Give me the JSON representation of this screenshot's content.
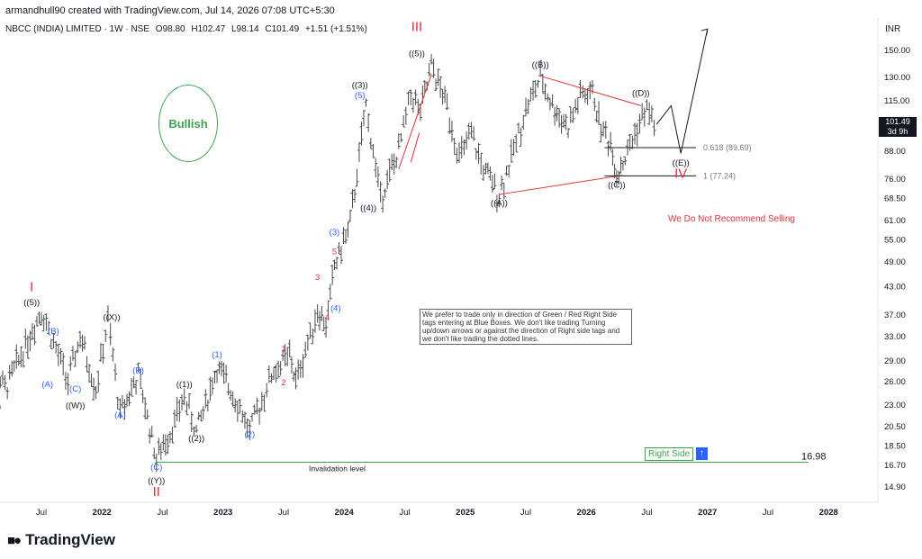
{
  "header": {
    "created_by": "armandhull90 created with TradingView.com, Jul 14, 2026 07:08 UTC+5:30",
    "symbol": "NBCC (INDIA) LIMITED · 1W · NSE",
    "ohlc_open": "O98.80",
    "ohlc_high": "H102.47",
    "ohlc_low": "L98.14",
    "ohlc_close": "C101.49",
    "change": "+1.51 (+1.51%)",
    "currency": "INR"
  },
  "price_box": {
    "price": "101.49",
    "countdown": "3d 9h"
  },
  "bullish_label": "Bullish",
  "note_text": "We prefer to trade only in direction of Green / Red Right Side tags entering at Blue Boxes. We don't like trading Turning up/down arrows or against the direction of Right side tags and we don't like trading the dotted lines.",
  "right_side_label": "Right Side",
  "arrow_icon": "up-arrow-icon",
  "recommend_text": "We Do Not Recommend Selling",
  "invalidation_label": "Invalidation level",
  "brand": "TradingView",
  "colors": {
    "green": "#3fa34d",
    "red": "#e0303a",
    "blue": "#2962ff",
    "bar": "#4a4a4a"
  },
  "chart_data": {
    "type": "ohlc",
    "scale": "log",
    "ylim": [
      13.5,
      175
    ],
    "y_ticks": [
      "150.00",
      "130.00",
      "115.00",
      "101.49",
      "88.00",
      "76.00",
      "68.50",
      "61.00",
      "55.00",
      "49.00",
      "43.00",
      "37.00",
      "33.00",
      "29.00",
      "26.00",
      "23.00",
      "20.50",
      "18.50",
      "16.70",
      "14.90"
    ],
    "x_ticks": [
      "Jul",
      "2022",
      "Jul",
      "2023",
      "Jul",
      "2024",
      "Jul",
      "2025",
      "Jul",
      "2026",
      "Jul",
      "2027",
      "Jul",
      "2028"
    ],
    "levels": [
      {
        "label": "0.618 (89.69)",
        "value": 89.69
      },
      {
        "label": "1 (77.24)",
        "value": 77.24
      },
      {
        "label": "16.98",
        "value": 16.98
      }
    ],
    "path": [
      {
        "x": 2021.0,
        "y": 31
      },
      {
        "x": 2021.2,
        "y": 25
      },
      {
        "x": 2021.5,
        "y": 38
      },
      {
        "x": 2021.72,
        "y": 26
      },
      {
        "x": 2021.82,
        "y": 33
      },
      {
        "x": 2021.95,
        "y": 25
      },
      {
        "x": 2022.05,
        "y": 36
      },
      {
        "x": 2022.15,
        "y": 22
      },
      {
        "x": 2022.3,
        "y": 27
      },
      {
        "x": 2022.45,
        "y": 17.3
      },
      {
        "x": 2022.6,
        "y": 21
      },
      {
        "x": 2022.68,
        "y": 24
      },
      {
        "x": 2022.78,
        "y": 20
      },
      {
        "x": 2022.95,
        "y": 28
      },
      {
        "x": 2023.1,
        "y": 24
      },
      {
        "x": 2023.22,
        "y": 20
      },
      {
        "x": 2023.4,
        "y": 27
      },
      {
        "x": 2023.55,
        "y": 30
      },
      {
        "x": 2023.6,
        "y": 26
      },
      {
        "x": 2023.78,
        "y": 38
      },
      {
        "x": 2023.85,
        "y": 35
      },
      {
        "x": 2023.92,
        "y": 48
      },
      {
        "x": 2024.05,
        "y": 60
      },
      {
        "x": 2024.18,
        "y": 112
      },
      {
        "x": 2024.3,
        "y": 69
      },
      {
        "x": 2024.45,
        "y": 88
      },
      {
        "x": 2024.55,
        "y": 120
      },
      {
        "x": 2024.63,
        "y": 108
      },
      {
        "x": 2024.72,
        "y": 138
      },
      {
        "x": 2024.85,
        "y": 112
      },
      {
        "x": 2024.95,
        "y": 85
      },
      {
        "x": 2025.05,
        "y": 96
      },
      {
        "x": 2025.15,
        "y": 80
      },
      {
        "x": 2025.28,
        "y": 70
      },
      {
        "x": 2025.38,
        "y": 85
      },
      {
        "x": 2025.5,
        "y": 110
      },
      {
        "x": 2025.62,
        "y": 130
      },
      {
        "x": 2025.72,
        "y": 112
      },
      {
        "x": 2025.85,
        "y": 100
      },
      {
        "x": 2025.95,
        "y": 118
      },
      {
        "x": 2026.05,
        "y": 120
      },
      {
        "x": 2026.12,
        "y": 100
      },
      {
        "x": 2026.2,
        "y": 92
      },
      {
        "x": 2026.25,
        "y": 78
      },
      {
        "x": 2026.32,
        "y": 85
      },
      {
        "x": 2026.42,
        "y": 100
      },
      {
        "x": 2026.5,
        "y": 110
      },
      {
        "x": 2026.58,
        "y": 101.5
      }
    ],
    "projection": [
      {
        "x": 2026.58,
        "y": 101.5
      },
      {
        "x": 2026.7,
        "y": 112
      },
      {
        "x": 2026.78,
        "y": 87
      },
      {
        "x": 2027.0,
        "y": 168
      }
    ],
    "triangle_upper": [
      {
        "x": 2025.62,
        "y": 131
      },
      {
        "x": 2026.45,
        "y": 112
      }
    ],
    "triangle_lower": [
      {
        "x": 2025.28,
        "y": 70
      },
      {
        "x": 2026.3,
        "y": 77.5
      }
    ],
    "wave3_channel": [
      {
        "x1": 2024.45,
        "y1": 80,
        "x2": 2024.72,
        "y2": 132
      },
      {
        "x1": 2024.55,
        "y1": 83,
        "x2": 2024.62,
        "y2": 97
      }
    ],
    "labels": [
      {
        "text": "I",
        "x": 2021.42,
        "y": 42,
        "color": "red",
        "size": "big"
      },
      {
        "text": "((5))",
        "x": 2021.42,
        "y": 39,
        "color": "black"
      },
      {
        "text": "((4))",
        "x": 2021.1,
        "y": 22.5,
        "color": "black"
      },
      {
        "text": "(B)",
        "x": 2021.6,
        "y": 33.5,
        "color": "blue"
      },
      {
        "text": "(A)",
        "x": 2021.55,
        "y": 25.3,
        "color": "blue"
      },
      {
        "text": "(C)",
        "x": 2021.78,
        "y": 24.7,
        "color": "blue"
      },
      {
        "text": "((W))",
        "x": 2021.78,
        "y": 22.6,
        "color": "black"
      },
      {
        "text": "((X))",
        "x": 2022.08,
        "y": 36,
        "color": "black"
      },
      {
        "text": "(B)",
        "x": 2022.3,
        "y": 27.2,
        "color": "blue"
      },
      {
        "text": "(A)",
        "x": 2022.15,
        "y": 21.5,
        "color": "blue"
      },
      {
        "text": "(C)",
        "x": 2022.45,
        "y": 16.3,
        "color": "blue"
      },
      {
        "text": "((Y))",
        "x": 2022.45,
        "y": 15.2,
        "color": "black"
      },
      {
        "text": "II",
        "x": 2022.45,
        "y": 14.2,
        "color": "red",
        "size": "big"
      },
      {
        "text": "((1))",
        "x": 2022.68,
        "y": 25.3,
        "color": "black"
      },
      {
        "text": "((2))",
        "x": 2022.78,
        "y": 19.0,
        "color": "black"
      },
      {
        "text": "(1)",
        "x": 2022.95,
        "y": 29.6,
        "color": "blue"
      },
      {
        "text": "(2)",
        "x": 2023.22,
        "y": 19.4,
        "color": "blue"
      },
      {
        "text": "1",
        "x": 2023.5,
        "y": 30.5,
        "color": "red"
      },
      {
        "text": "2",
        "x": 2023.5,
        "y": 25.5,
        "color": "red"
      },
      {
        "text": "3",
        "x": 2023.78,
        "y": 44.5,
        "color": "red"
      },
      {
        "text": "4",
        "x": 2023.86,
        "y": 36,
        "color": "red"
      },
      {
        "text": "(4)",
        "x": 2023.93,
        "y": 37.8,
        "color": "blue"
      },
      {
        "text": "5",
        "x": 2023.92,
        "y": 51,
        "color": "red"
      },
      {
        "text": "(3)",
        "x": 2023.92,
        "y": 56.5,
        "color": "blue"
      },
      {
        "text": "((3))",
        "x": 2024.13,
        "y": 123,
        "color": "black"
      },
      {
        "text": "(5)",
        "x": 2024.13,
        "y": 116.5,
        "color": "blue"
      },
      {
        "text": "((4))",
        "x": 2024.2,
        "y": 64.3,
        "color": "black"
      },
      {
        "text": "III",
        "x": 2024.6,
        "y": 166,
        "color": "red",
        "size": "big"
      },
      {
        "text": "((5))",
        "x": 2024.6,
        "y": 145.5,
        "color": "black"
      },
      {
        "text": "((A))",
        "x": 2025.28,
        "y": 66,
        "color": "black"
      },
      {
        "text": "((B))",
        "x": 2025.62,
        "y": 137,
        "color": "black"
      },
      {
        "text": "((C))",
        "x": 2026.25,
        "y": 72.5,
        "color": "black"
      },
      {
        "text": "((D))",
        "x": 2026.45,
        "y": 118,
        "color": "black"
      },
      {
        "text": "((E))",
        "x": 2026.78,
        "y": 81.5,
        "color": "black"
      },
      {
        "text": "IV",
        "x": 2026.78,
        "y": 76.5,
        "color": "red",
        "size": "big"
      }
    ]
  }
}
